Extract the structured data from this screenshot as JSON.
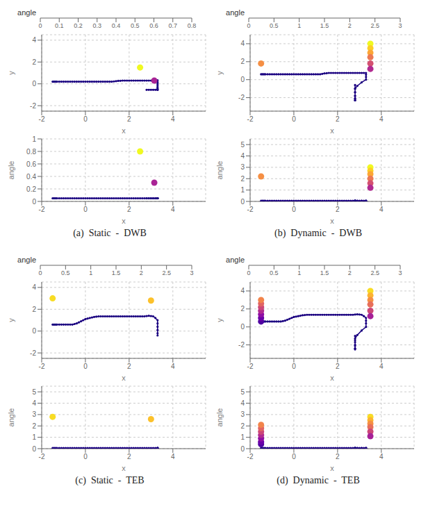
{
  "chart_data": [
    {
      "type": "scatter3d",
      "title": "(a)  Static  -  DWB",
      "xlabel": "x",
      "ylabel": "y",
      "zlabel": "angle",
      "xlim": [
        -2,
        5.5
      ],
      "ylim": [
        -2.5,
        4.5
      ],
      "zlim": [
        0,
        1.0
      ],
      "xticks": [
        -2,
        0,
        2,
        4
      ],
      "yticks": [
        -2,
        0,
        2,
        4
      ],
      "zticks": [
        0,
        0.2,
        0.4,
        0.6,
        0.8,
        1
      ],
      "grid": true,
      "colorbar": {
        "label": "angle",
        "range": [
          0,
          0.8
        ],
        "ticks": [
          0,
          0.1,
          0.2,
          0.3,
          0.4,
          0.5,
          0.6,
          0.7,
          0.8
        ]
      },
      "series": [
        {
          "type": "line",
          "marker": "circle",
          "color": "#1a0080",
          "x": [
            -1.5,
            -1.45,
            -1.4,
            -1.35,
            -1.3,
            -1.2,
            -1.1,
            -1.0,
            -0.9,
            -0.8,
            -0.7,
            -0.6,
            -0.5,
            -0.4,
            -0.3,
            -0.2,
            -0.1,
            0.0,
            0.1,
            0.2,
            0.3,
            0.4,
            0.5,
            0.6,
            0.7,
            0.8,
            0.9,
            1.0,
            1.1,
            1.2,
            1.3,
            1.4,
            1.5,
            1.6,
            1.7,
            1.8,
            1.9,
            2.0,
            2.1,
            2.2,
            2.3,
            2.4,
            2.5,
            2.6,
            2.7,
            2.8,
            2.9,
            3.0,
            3.1,
            3.2,
            3.3,
            3.3,
            3.3,
            3.3,
            3.3,
            3.3,
            3.3,
            3.3,
            3.3,
            3.2,
            3.1,
            3.0,
            2.9,
            2.8
          ],
          "y": [
            0.2,
            0.2,
            0.2,
            0.2,
            0.2,
            0.2,
            0.2,
            0.2,
            0.2,
            0.2,
            0.2,
            0.2,
            0.2,
            0.2,
            0.2,
            0.2,
            0.2,
            0.2,
            0.2,
            0.2,
            0.2,
            0.2,
            0.2,
            0.2,
            0.2,
            0.2,
            0.2,
            0.2,
            0.2,
            0.2,
            0.22,
            0.25,
            0.27,
            0.28,
            0.3,
            0.3,
            0.3,
            0.3,
            0.3,
            0.3,
            0.3,
            0.3,
            0.3,
            0.3,
            0.3,
            0.3,
            0.3,
            0.3,
            0.3,
            0.3,
            0.32,
            0.15,
            0.0,
            -0.15,
            -0.3,
            -0.42,
            -0.52,
            -0.55,
            -0.55,
            -0.55,
            -0.55,
            -0.55,
            -0.55,
            -0.55
          ],
          "z": [
            0.05,
            0.05,
            0.05,
            0.05,
            0.05,
            0.05,
            0.05,
            0.05,
            0.05,
            0.05,
            0.05,
            0.05,
            0.05,
            0.05,
            0.05,
            0.05,
            0.05,
            0.05,
            0.05,
            0.05,
            0.05,
            0.05,
            0.05,
            0.05,
            0.05,
            0.05,
            0.05,
            0.05,
            0.05,
            0.05,
            0.05,
            0.05,
            0.05,
            0.05,
            0.05,
            0.05,
            0.05,
            0.05,
            0.05,
            0.05,
            0.05,
            0.05,
            0.05,
            0.05,
            0.05,
            0.05,
            0.05,
            0.05,
            0.05,
            0.05,
            0.05,
            0.05,
            0.05,
            0.05,
            0.05,
            0.05,
            0.05,
            0.05,
            0.05,
            0.05,
            0.05,
            0.05,
            0.05,
            0.05
          ]
        },
        {
          "type": "scatter",
          "marker": "circle",
          "x": [
            2.5,
            3.15
          ],
          "y": [
            1.5,
            0.3
          ],
          "z": [
            0.8,
            0.3
          ],
          "values": [
            0.8,
            0.3
          ]
        }
      ]
    },
    {
      "type": "scatter3d",
      "title": "(b)  Dynamic  -  DWB",
      "xlabel": "x",
      "ylabel": "y",
      "zlabel": "angle",
      "xlim": [
        -2,
        5.5
      ],
      "ylim": [
        -3.5,
        5.0
      ],
      "zlim": [
        0,
        5.5
      ],
      "xticks": [
        -2,
        0,
        2,
        4
      ],
      "yticks": [
        -2,
        0,
        2,
        4
      ],
      "zticks": [
        0,
        1,
        2,
        3,
        4,
        5
      ],
      "grid": true,
      "colorbar": {
        "label": "angle",
        "range": [
          0,
          3
        ],
        "ticks": [
          0,
          0.5,
          1,
          1.5,
          2,
          2.5,
          3
        ]
      },
      "series": [
        {
          "type": "line",
          "marker": "circle",
          "color": "#1a0080",
          "x": [
            -1.5,
            -1.45,
            -1.4,
            -1.35,
            -1.3,
            -1.2,
            -1.1,
            -1.0,
            -0.9,
            -0.8,
            -0.7,
            -0.6,
            -0.5,
            -0.4,
            -0.3,
            -0.2,
            -0.1,
            0.0,
            0.1,
            0.2,
            0.3,
            0.4,
            0.5,
            0.6,
            0.7,
            0.8,
            0.9,
            1.0,
            1.1,
            1.2,
            1.3,
            1.4,
            1.5,
            1.6,
            1.7,
            1.8,
            1.9,
            2.0,
            2.1,
            2.2,
            2.3,
            2.4,
            2.5,
            2.6,
            2.7,
            2.8,
            2.9,
            3.0,
            3.1,
            3.2,
            3.3,
            3.3,
            3.3,
            3.3,
            3.1,
            2.9,
            2.8,
            2.8,
            2.8,
            2.8,
            2.8,
            2.8,
            2.8,
            2.8,
            2.8,
            2.8,
            2.8
          ],
          "y": [
            0.6,
            0.6,
            0.6,
            0.6,
            0.6,
            0.6,
            0.6,
            0.6,
            0.6,
            0.6,
            0.6,
            0.6,
            0.6,
            0.6,
            0.6,
            0.6,
            0.6,
            0.6,
            0.6,
            0.6,
            0.6,
            0.6,
            0.6,
            0.6,
            0.6,
            0.6,
            0.6,
            0.6,
            0.6,
            0.6,
            0.65,
            0.7,
            0.72,
            0.75,
            0.75,
            0.75,
            0.75,
            0.75,
            0.75,
            0.75,
            0.75,
            0.75,
            0.75,
            0.75,
            0.75,
            0.75,
            0.75,
            0.75,
            0.75,
            0.75,
            0.75,
            0.55,
            0.3,
            0.0,
            -0.3,
            -0.7,
            -1.0,
            -1.4,
            -1.8,
            -2.1,
            -2.3,
            -2.3,
            -2.1,
            -1.8,
            -1.4,
            -1.0,
            -0.6
          ],
          "z": [
            0.05,
            0.05,
            0.05,
            0.05,
            0.05,
            0.05,
            0.05,
            0.05,
            0.05,
            0.05,
            0.05,
            0.05,
            0.05,
            0.05,
            0.05,
            0.05,
            0.05,
            0.05,
            0.05,
            0.05,
            0.05,
            0.05,
            0.05,
            0.05,
            0.05,
            0.05,
            0.05,
            0.05,
            0.05,
            0.05,
            0.05,
            0.05,
            0.05,
            0.05,
            0.05,
            0.05,
            0.05,
            0.05,
            0.05,
            0.05,
            0.05,
            0.05,
            0.05,
            0.05,
            0.05,
            0.05,
            0.05,
            0.05,
            0.05,
            0.05,
            0.05,
            0.05,
            0.05,
            0.05,
            0.05,
            0.05,
            0.05,
            0.05,
            0.05,
            0.05,
            0.05,
            0.05,
            0.05,
            0.05,
            0.05,
            0.05,
            0.05
          ]
        },
        {
          "type": "scatter",
          "marker": "circle",
          "x": [
            -1.5,
            3.5,
            3.5,
            3.5,
            3.5,
            3.5,
            3.5
          ],
          "y": [
            1.8,
            4.0,
            3.5,
            3.0,
            2.5,
            1.8,
            1.2
          ],
          "z": [
            2.2,
            3.0,
            2.7,
            2.4,
            2.0,
            1.6,
            1.2
          ],
          "values": [
            2.2,
            3.0,
            2.7,
            2.4,
            2.0,
            1.6,
            1.2
          ]
        }
      ]
    },
    {
      "type": "scatter3d",
      "title": "(c)  Static  -  TEB",
      "xlabel": "x",
      "ylabel": "y",
      "zlabel": "angle",
      "xlim": [
        -2,
        5.5
      ],
      "ylim": [
        -2.5,
        4.5
      ],
      "zlim": [
        0,
        5.5
      ],
      "xticks": [
        -2,
        0,
        2,
        4
      ],
      "yticks": [
        -2,
        0,
        2,
        4
      ],
      "zticks": [
        0,
        1,
        2,
        3,
        4,
        5
      ],
      "grid": true,
      "colorbar": {
        "label": "angle",
        "range": [
          0,
          3
        ],
        "ticks": [
          0,
          0.5,
          1,
          1.5,
          2,
          2.5,
          3
        ]
      },
      "series": [
        {
          "type": "line",
          "marker": "circle",
          "color": "#1a0080",
          "x": [
            -1.5,
            -1.45,
            -1.4,
            -1.35,
            -1.3,
            -1.2,
            -1.1,
            -1.0,
            -0.9,
            -0.8,
            -0.7,
            -0.6,
            -0.5,
            -0.4,
            -0.3,
            -0.2,
            -0.1,
            0.0,
            0.1,
            0.2,
            0.3,
            0.4,
            0.5,
            0.6,
            0.7,
            0.8,
            0.9,
            1.0,
            1.1,
            1.2,
            1.3,
            1.4,
            1.5,
            1.6,
            1.7,
            1.8,
            1.9,
            2.0,
            2.1,
            2.2,
            2.3,
            2.4,
            2.5,
            2.6,
            2.7,
            2.8,
            2.9,
            3.0,
            3.1,
            3.2,
            3.3,
            3.3,
            3.3,
            3.3,
            3.3,
            3.3
          ],
          "y": [
            0.6,
            0.6,
            0.6,
            0.6,
            0.6,
            0.6,
            0.6,
            0.6,
            0.6,
            0.6,
            0.6,
            0.6,
            0.65,
            0.7,
            0.8,
            0.9,
            1.0,
            1.1,
            1.15,
            1.2,
            1.25,
            1.3,
            1.32,
            1.35,
            1.35,
            1.35,
            1.35,
            1.35,
            1.35,
            1.35,
            1.35,
            1.35,
            1.35,
            1.35,
            1.35,
            1.35,
            1.35,
            1.35,
            1.35,
            1.35,
            1.35,
            1.35,
            1.35,
            1.35,
            1.35,
            1.38,
            1.4,
            1.38,
            1.35,
            1.2,
            1.0,
            0.7,
            0.4,
            0.1,
            -0.2,
            -0.4
          ],
          "z": [
            0.05,
            0.05,
            0.05,
            0.05,
            0.05,
            0.05,
            0.05,
            0.05,
            0.05,
            0.05,
            0.05,
            0.05,
            0.05,
            0.05,
            0.05,
            0.05,
            0.05,
            0.05,
            0.05,
            0.05,
            0.05,
            0.05,
            0.05,
            0.05,
            0.05,
            0.05,
            0.05,
            0.05,
            0.05,
            0.05,
            0.05,
            0.05,
            0.05,
            0.05,
            0.05,
            0.05,
            0.05,
            0.05,
            0.05,
            0.05,
            0.05,
            0.05,
            0.05,
            0.05,
            0.05,
            0.05,
            0.05,
            0.05,
            0.05,
            0.05,
            0.05,
            0.05,
            0.05,
            0.05,
            0.05,
            0.05
          ]
        },
        {
          "type": "scatter",
          "marker": "circle",
          "x": [
            -1.5,
            3.0
          ],
          "y": [
            3.0,
            2.8
          ],
          "z": [
            2.8,
            2.6
          ],
          "values": [
            2.8,
            2.6
          ]
        }
      ]
    },
    {
      "type": "scatter3d",
      "title": "(d)  Dynamic  -  TEB",
      "xlabel": "x",
      "ylabel": "y",
      "zlabel": "angle",
      "xlim": [
        -2,
        5.5
      ],
      "ylim": [
        -3.5,
        5.0
      ],
      "zlim": [
        0,
        5.5
      ],
      "xticks": [
        -2,
        0,
        2,
        4
      ],
      "yticks": [
        -2,
        0,
        2,
        4
      ],
      "zticks": [
        0,
        1,
        2,
        3,
        4,
        5
      ],
      "grid": true,
      "colorbar": {
        "label": "angle",
        "range": [
          0,
          3
        ],
        "ticks": [
          0,
          0.5,
          1,
          1.5,
          2,
          2.5,
          3
        ]
      },
      "series": [
        {
          "type": "line",
          "marker": "circle",
          "color": "#1a0080",
          "x": [
            -1.5,
            -1.45,
            -1.4,
            -1.35,
            -1.3,
            -1.2,
            -1.1,
            -1.0,
            -0.9,
            -0.8,
            -0.7,
            -0.6,
            -0.5,
            -0.4,
            -0.3,
            -0.2,
            -0.1,
            0.0,
            0.1,
            0.2,
            0.3,
            0.4,
            0.5,
            0.6,
            0.7,
            0.8,
            0.9,
            1.0,
            1.1,
            1.2,
            1.3,
            1.4,
            1.5,
            1.6,
            1.7,
            1.8,
            1.9,
            2.0,
            2.1,
            2.2,
            2.3,
            2.4,
            2.5,
            2.6,
            2.7,
            2.8,
            2.9,
            3.0,
            3.1,
            3.2,
            3.3,
            3.3,
            3.3,
            3.3,
            3.1,
            2.9,
            2.8,
            2.8,
            2.8,
            2.8,
            2.8,
            2.8,
            2.8,
            2.8,
            2.8
          ],
          "y": [
            0.6,
            0.6,
            0.6,
            0.6,
            0.6,
            0.6,
            0.6,
            0.6,
            0.6,
            0.6,
            0.6,
            0.6,
            0.65,
            0.7,
            0.8,
            0.9,
            1.0,
            1.1,
            1.15,
            1.2,
            1.25,
            1.3,
            1.32,
            1.35,
            1.35,
            1.35,
            1.35,
            1.35,
            1.35,
            1.35,
            1.35,
            1.35,
            1.35,
            1.35,
            1.35,
            1.35,
            1.35,
            1.35,
            1.35,
            1.35,
            1.35,
            1.35,
            1.35,
            1.35,
            1.35,
            1.38,
            1.4,
            1.38,
            1.35,
            1.2,
            1.0,
            0.7,
            0.4,
            0.0,
            -0.4,
            -0.9,
            -1.3,
            -1.7,
            -2.1,
            -2.4,
            -2.5,
            -2.4,
            -2.0,
            -1.5,
            -1.0
          ],
          "z": [
            0.05,
            0.05,
            0.05,
            0.05,
            0.05,
            0.05,
            0.05,
            0.05,
            0.05,
            0.05,
            0.05,
            0.05,
            0.05,
            0.05,
            0.05,
            0.05,
            0.05,
            0.05,
            0.05,
            0.05,
            0.05,
            0.05,
            0.05,
            0.05,
            0.05,
            0.05,
            0.05,
            0.05,
            0.05,
            0.05,
            0.05,
            0.05,
            0.05,
            0.05,
            0.05,
            0.05,
            0.05,
            0.05,
            0.05,
            0.05,
            0.05,
            0.05,
            0.05,
            0.05,
            0.05,
            0.05,
            0.05,
            0.05,
            0.05,
            0.05,
            0.05,
            0.05,
            0.05,
            0.05,
            0.05,
            0.05,
            0.05,
            0.05,
            0.05,
            0.05,
            0.05,
            0.05,
            0.05,
            0.05,
            0.05
          ]
        },
        {
          "type": "scatter",
          "marker": "circle",
          "x": [
            -1.5,
            -1.5,
            -1.5,
            -1.5,
            -1.5,
            -1.5,
            -1.5,
            3.5,
            3.5,
            3.5,
            3.5,
            3.5,
            3.5
          ],
          "y": [
            0.6,
            1.0,
            1.4,
            1.8,
            2.2,
            2.6,
            3.0,
            4.0,
            3.5,
            3.0,
            2.5,
            1.8,
            1.2
          ],
          "z": [
            0.4,
            0.6,
            0.9,
            1.2,
            1.5,
            1.8,
            2.1,
            2.8,
            2.5,
            2.2,
            1.9,
            1.5,
            1.1
          ],
          "values": [
            0.4,
            0.6,
            0.9,
            1.2,
            1.5,
            1.8,
            2.1,
            2.8,
            2.5,
            2.2,
            1.9,
            1.5,
            1.1
          ]
        }
      ]
    }
  ]
}
